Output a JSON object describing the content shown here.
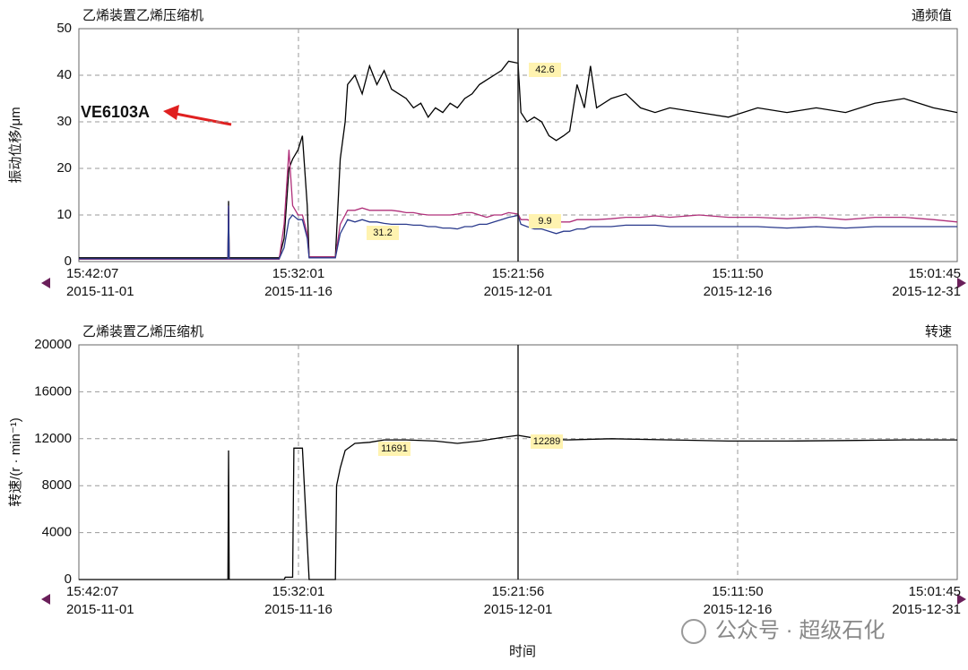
{
  "chart_data": [
    {
      "type": "line",
      "title": "乙烯装置乙烯压缩机",
      "subtitle": "通频值",
      "ylabel": "振动位移/μm",
      "xlim": [
        "2015-11-01 15:42:07",
        "2015-12-31 15:01:45"
      ],
      "xticks": [
        {
          "time": "15:42:07",
          "date": "2015-11-01"
        },
        {
          "time": "15:32:01",
          "date": "2015-11-16"
        },
        {
          "time": "15:21:56",
          "date": "2015-12-01"
        },
        {
          "time": "15:11:50",
          "date": "2015-12-16"
        },
        {
          "time": "15:01:45",
          "date": "2015-12-31"
        }
      ],
      "ylim": [
        0,
        50
      ],
      "yticks": [
        0,
        10,
        20,
        30,
        40,
        50
      ],
      "grid": true,
      "cursor": "2015-12-01 15:21:56",
      "annotations": [
        "42.6",
        "9.9",
        "31.2",
        "VE6103A"
      ],
      "x": [
        "2015-11-01 15:42",
        "2015-11-11 20:00",
        "2015-11-11 21:00",
        "2015-11-11 22:00",
        "2015-11-15 08:00",
        "2015-11-15 16:00",
        "2015-11-16 00:00",
        "2015-11-16 06:00",
        "2015-11-16 15:00",
        "2015-11-16 22:00",
        "2015-11-17 06:00",
        "2015-11-17 09:00",
        "2015-11-19 04:00",
        "2015-11-19 12:00",
        "2015-11-19 20:00",
        "2015-11-20 00:00",
        "2015-11-20 12:00",
        "2015-11-21 00:00",
        "2015-11-21 12:00",
        "2015-11-22 00:00",
        "2015-11-22 12:00",
        "2015-11-23 00:00",
        "2015-11-23 12:00",
        "2015-11-24 00:00",
        "2015-11-24 12:00",
        "2015-11-25 00:00",
        "2015-11-25 12:00",
        "2015-11-26 00:00",
        "2015-11-26 12:00",
        "2015-11-27 00:00",
        "2015-11-27 12:00",
        "2015-11-28 00:00",
        "2015-11-28 12:00",
        "2015-11-29 00:00",
        "2015-11-29 12:00",
        "2015-11-30 00:00",
        "2015-11-30 12:00",
        "2015-12-01 00:00",
        "2015-12-01 15:22",
        "2015-12-01 20:00",
        "2015-12-02 06:00",
        "2015-12-02 18:00",
        "2015-12-03 06:00",
        "2015-12-03 18:00",
        "2015-12-04 06:00",
        "2015-12-04 18:00",
        "2015-12-05 04:00",
        "2015-12-05 16:00",
        "2015-12-06 04:00",
        "2015-12-06 14:00",
        "2015-12-07 00:00",
        "2015-12-08 00:00",
        "2015-12-09 00:00",
        "2015-12-10 00:00",
        "2015-12-11 00:00",
        "2015-12-12 00:00",
        "2015-12-14 00:00",
        "2015-12-16 00:00",
        "2015-12-18 00:00",
        "2015-12-20 00:00",
        "2015-12-22 00:00",
        "2015-12-24 00:00",
        "2015-12-26 00:00",
        "2015-12-28 00:00",
        "2015-12-30 00:00",
        "2015-12-31 15:01"
      ],
      "series": [
        {
          "color": "#000000",
          "values": [
            0.8,
            0.8,
            13,
            0.8,
            0.8,
            5,
            20,
            22,
            24,
            27,
            12,
            1,
            1,
            22,
            30,
            38,
            40,
            36,
            42,
            38,
            41,
            37,
            36,
            35,
            33,
            34,
            31,
            33,
            32,
            34,
            33,
            35,
            36,
            38,
            39,
            40,
            41,
            43,
            42.6,
            32,
            30,
            31,
            30,
            27,
            26,
            27,
            28,
            38,
            33,
            42,
            33,
            35,
            36,
            33,
            32,
            33,
            32,
            31,
            33,
            32,
            33,
            32,
            34,
            35,
            33,
            32
          ]
        },
        {
          "color": "#b0307a",
          "values": [
            0.5,
            0.5,
            12,
            0.5,
            0.5,
            8,
            24,
            12,
            10,
            10,
            6,
            1,
            1,
            8,
            10,
            11,
            11,
            11.5,
            11,
            11,
            11,
            11,
            10.8,
            10.5,
            10.5,
            10.2,
            10,
            10,
            10,
            10,
            10.2,
            10.5,
            10.5,
            10,
            9.5,
            10,
            10,
            10.5,
            10.2,
            9,
            9,
            8.5,
            8.8,
            8.5,
            8.5,
            8.5,
            8.5,
            9,
            9,
            9,
            9,
            9.2,
            9.5,
            9.5,
            9.8,
            9.5,
            10,
            9.5,
            9.5,
            9.2,
            9.5,
            9,
            9.5,
            9.5,
            9,
            8.5
          ]
        },
        {
          "color": "#2a3a8c",
          "values": [
            0.6,
            0.6,
            12,
            0.6,
            0.6,
            3,
            9,
            10,
            9,
            9,
            5,
            0.8,
            0.8,
            6,
            8,
            9,
            8.5,
            9,
            8.5,
            8.5,
            8.2,
            8,
            8,
            8,
            7.8,
            7.8,
            7.5,
            7.5,
            7.2,
            7.2,
            7,
            7.5,
            7.5,
            8,
            8,
            8.5,
            9,
            9.5,
            9.9,
            8,
            7.5,
            7,
            7,
            6.5,
            6,
            6.5,
            6.5,
            7,
            7,
            7.5,
            7.5,
            7.5,
            7.8,
            7.8,
            7.8,
            7.5,
            7.5,
            7.5,
            7.5,
            7.2,
            7.5,
            7.2,
            7.5,
            7.5,
            7.5,
            7.5
          ]
        }
      ]
    },
    {
      "type": "line",
      "title": "乙烯装置乙烯压缩机",
      "subtitle": "转速",
      "ylabel": "转速/(r · min⁻¹)",
      "xlabel": "时间",
      "xlim": [
        "2015-11-01 15:42:07",
        "2015-12-31 15:01:45"
      ],
      "xticks": [
        {
          "time": "15:42:07",
          "date": "2015-11-01"
        },
        {
          "time": "15:32:01",
          "date": "2015-11-16"
        },
        {
          "time": "15:21:56",
          "date": "2015-12-01"
        },
        {
          "time": "15:11:50",
          "date": "2015-12-16"
        },
        {
          "time": "15:01:45",
          "date": "2015-12-31"
        }
      ],
      "ylim": [
        0,
        20000
      ],
      "yticks": [
        0,
        4000,
        8000,
        12000,
        16000,
        20000
      ],
      "grid": true,
      "cursor": "2015-12-01 15:21:56",
      "annotations": [
        "11691",
        "12289"
      ],
      "x": [
        "2015-11-01 15:42",
        "2015-11-11 20:00",
        "2015-11-11 21:00",
        "2015-11-11 22:00",
        "2015-11-15 16:00",
        "2015-11-15 18:00",
        "2015-11-16 06:00",
        "2015-11-16 08:00",
        "2015-11-16 22:00",
        "2015-11-17 09:00",
        "2015-11-19 04:00",
        "2015-11-19 06:00",
        "2015-11-19 12:00",
        "2015-11-19 20:00",
        "2015-11-20 12:00",
        "2015-11-21 12:00",
        "2015-11-22 12:00",
        "2015-11-24 00:00",
        "2015-11-26 00:00",
        "2015-11-27 12:00",
        "2015-11-29 00:00",
        "2015-11-30 12:00",
        "2015-12-01 15:22",
        "2015-12-03 00:00",
        "2015-12-05 00:00",
        "2015-12-08 00:00",
        "2015-12-12 00:00",
        "2015-12-16 00:00",
        "2015-12-20 00:00",
        "2015-12-24 00:00",
        "2015-12-28 00:00",
        "2015-12-31 15:01"
      ],
      "series": [
        {
          "color": "#000000",
          "values": [
            0,
            0,
            11000,
            0,
            0,
            200,
            200,
            11200,
            11200,
            0,
            0,
            8000,
            9500,
            11000,
            11600,
            11691,
            11900,
            11900,
            11800,
            11600,
            11800,
            12100,
            12289,
            12000,
            11900,
            12000,
            11900,
            11800,
            11800,
            11850,
            11900,
            11900
          ]
        }
      ]
    }
  ],
  "watermark": "公众号 · 超级石化"
}
